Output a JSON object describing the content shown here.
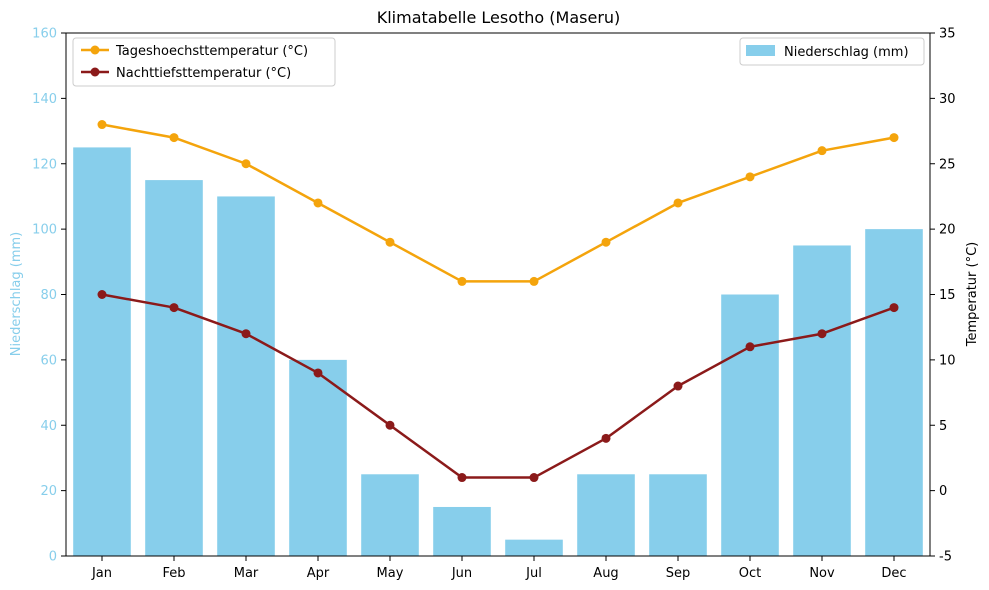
{
  "chart_data": {
    "type": "bar+line",
    "title": "Klimatabelle Lesotho (Maseru)",
    "categories": [
      "Jan",
      "Feb",
      "Mar",
      "Apr",
      "May",
      "Jun",
      "Jul",
      "Aug",
      "Sep",
      "Oct",
      "Nov",
      "Dec"
    ],
    "left_axis": {
      "label": "Niederschlag (mm)",
      "range": [
        0,
        160
      ],
      "ticks": [
        0,
        20,
        40,
        60,
        80,
        100,
        120,
        140,
        160
      ],
      "color": "#87CEEB"
    },
    "right_axis": {
      "label": "Temperatur (°C)",
      "range": [
        -5,
        35
      ],
      "ticks": [
        -5,
        0,
        5,
        10,
        15,
        20,
        25,
        30,
        35
      ]
    },
    "bars": {
      "name": "Niederschlag (mm)",
      "values": [
        125,
        115,
        110,
        60,
        25,
        15,
        5,
        25,
        25,
        80,
        95,
        100
      ],
      "color": "#87CEEB",
      "legend_position": "top-right"
    },
    "lines": [
      {
        "name": "Tageshoechsttemperatur (°C)",
        "values": [
          28,
          27,
          25,
          22,
          19,
          16,
          16,
          19,
          22,
          24,
          26,
          27
        ],
        "color": "#F4A40C"
      },
      {
        "name": "Nachttiefsttemperatur (°C)",
        "values": [
          15,
          14,
          12,
          9,
          5,
          1,
          1,
          4,
          8,
          11,
          12,
          14
        ],
        "color": "#8B1A1A"
      }
    ],
    "line_legend_position": "top-left",
    "grid": false
  }
}
